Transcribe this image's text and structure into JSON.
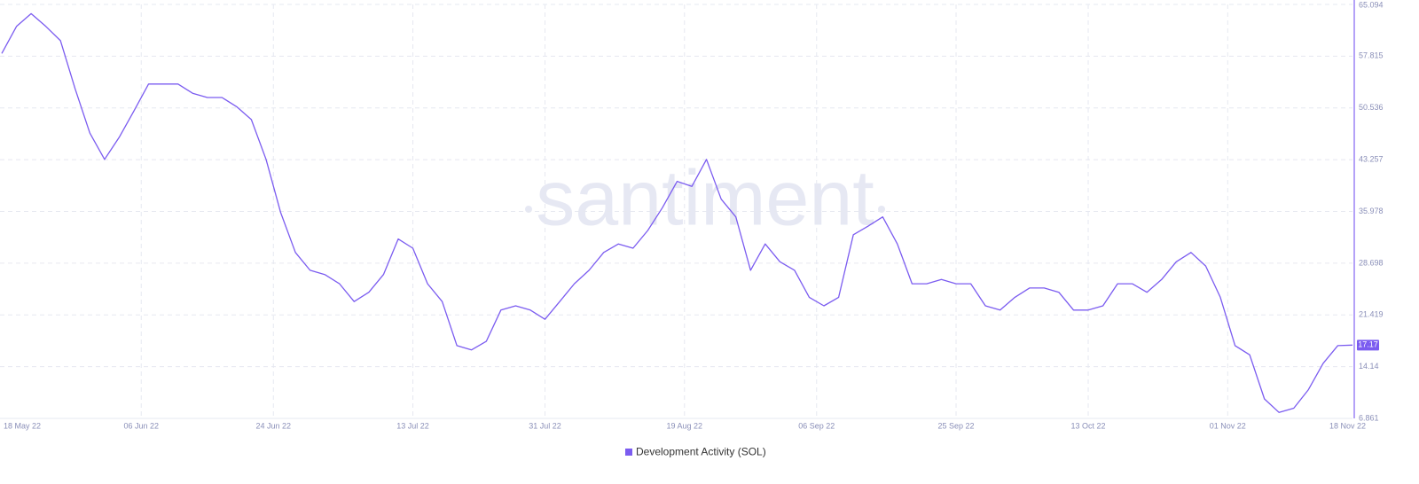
{
  "chart_data": {
    "type": "line",
    "watermark": "santiment",
    "x": [
      "2022-05-18",
      "2022-05-20",
      "2022-05-22",
      "2022-05-24",
      "2022-05-26",
      "2022-05-28",
      "2022-05-30",
      "2022-06-01",
      "2022-06-03",
      "2022-06-05",
      "2022-06-07",
      "2022-06-09",
      "2022-06-11",
      "2022-06-13",
      "2022-06-15",
      "2022-06-17",
      "2022-06-19",
      "2022-06-21",
      "2022-06-23",
      "2022-06-25",
      "2022-06-27",
      "2022-06-29",
      "2022-07-01",
      "2022-07-03",
      "2022-07-05",
      "2022-07-07",
      "2022-07-09",
      "2022-07-11",
      "2022-07-13",
      "2022-07-15",
      "2022-07-17",
      "2022-07-19",
      "2022-07-21",
      "2022-07-23",
      "2022-07-25",
      "2022-07-27",
      "2022-07-29",
      "2022-07-31",
      "2022-08-02",
      "2022-08-04",
      "2022-08-06",
      "2022-08-08",
      "2022-08-10",
      "2022-08-12",
      "2022-08-14",
      "2022-08-16",
      "2022-08-18",
      "2022-08-20",
      "2022-08-22",
      "2022-08-24",
      "2022-08-26",
      "2022-08-28",
      "2022-08-30",
      "2022-09-01",
      "2022-09-03",
      "2022-09-05",
      "2022-09-07",
      "2022-09-09",
      "2022-09-11",
      "2022-09-13",
      "2022-09-15",
      "2022-09-17",
      "2022-09-19",
      "2022-09-21",
      "2022-09-23",
      "2022-09-25",
      "2022-09-27",
      "2022-09-29",
      "2022-10-01",
      "2022-10-03",
      "2022-10-05",
      "2022-10-07",
      "2022-10-09",
      "2022-10-11",
      "2022-10-13",
      "2022-10-15",
      "2022-10-17",
      "2022-10-19",
      "2022-10-21",
      "2022-10-23",
      "2022-10-25",
      "2022-10-27",
      "2022-10-29",
      "2022-10-31",
      "2022-11-02",
      "2022-11-04",
      "2022-11-06",
      "2022-11-08",
      "2022-11-10",
      "2022-11-12",
      "2022-11-14",
      "2022-11-16",
      "2022-11-18"
    ],
    "series": [
      {
        "name": "Development Activity (SOL)",
        "color": "#7b5cf0",
        "axis": "y2",
        "values": [
          58.2,
          62,
          63.8,
          62,
          60,
          53.2,
          47,
          43.3,
          46.4,
          50.1,
          53.9,
          53.9,
          53.9,
          52.6,
          52,
          52,
          50.7,
          48.9,
          43.3,
          35.8,
          30.2,
          27.7,
          27.1,
          25.8,
          23.3,
          24.6,
          27.1,
          32.1,
          30.8,
          25.8,
          23.3,
          17.1,
          16.5,
          17.7,
          22.1,
          22.7,
          22.1,
          20.8,
          23.3,
          25.8,
          27.7,
          30.2,
          31.4,
          30.8,
          33.3,
          36.5,
          40.2,
          39.5,
          43.3,
          37.7,
          35.2,
          27.7,
          31.4,
          28.9,
          27.7,
          23.9,
          22.7,
          23.9,
          32.7,
          33.9,
          35.2,
          31.4,
          25.8,
          25.8,
          26.4,
          25.8,
          25.8,
          22.7,
          22.1,
          23.9,
          25.2,
          25.2,
          24.6,
          22.1,
          22.1,
          22.7,
          25.8,
          25.8,
          24.6,
          26.4,
          28.9,
          30.2,
          28.3,
          23.9,
          17.1,
          15.8,
          9.6,
          7.7,
          8.3,
          10.9,
          14.6,
          17.1,
          17.17
        ]
      }
    ],
    "xlim": [
      "2022-05-18",
      "2022-11-18"
    ],
    "xticks": [
      {
        "value": "2022-05-18",
        "label": "18 May 22"
      },
      {
        "value": "2022-06-06",
        "label": "06 Jun 22"
      },
      {
        "value": "2022-06-24",
        "label": "24 Jun 22"
      },
      {
        "value": "2022-07-13",
        "label": "13 Jul 22"
      },
      {
        "value": "2022-07-31",
        "label": "31 Jul 22"
      },
      {
        "value": "2022-08-19",
        "label": "19 Aug 22"
      },
      {
        "value": "2022-09-06",
        "label": "06 Sep 22"
      },
      {
        "value": "2022-09-25",
        "label": "25 Sep 22"
      },
      {
        "value": "2022-10-13",
        "label": "13 Oct 22"
      },
      {
        "value": "2022-11-01",
        "label": "01 Nov 22"
      },
      {
        "value": "2022-11-18",
        "label": "18 Nov 22"
      }
    ],
    "y2lim": [
      6.861,
      65.094
    ],
    "y2ticks": [
      6.861,
      14.14,
      21.419,
      28.698,
      35.978,
      43.257,
      50.536,
      57.815,
      65.094
    ],
    "grid": true
  }
}
